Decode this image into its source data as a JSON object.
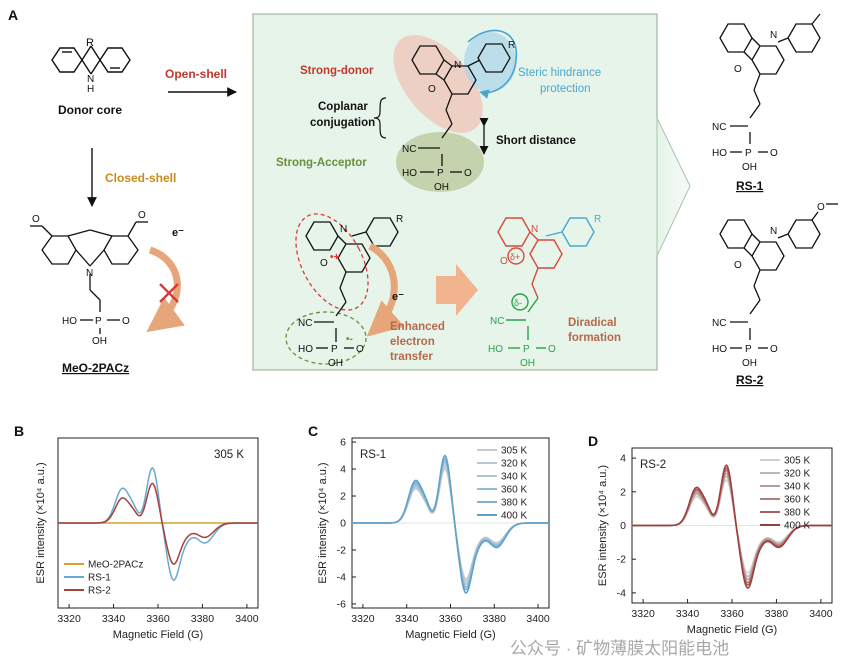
{
  "panel_a": {
    "letter": "A",
    "donor_core_label": "Donor core",
    "donor_r": "R",
    "donor_nh": "N",
    "donor_h": "H",
    "open_shell_label": "Open-shell",
    "closed_shell_label": "Closed-shell",
    "electron_label": "e⁻",
    "compound_ref_label": "MeO-2PACz",
    "center": {
      "strong_donor": "Strong-donor",
      "coplanar_line1": "Coplanar",
      "coplanar_line2": "conjugation",
      "strong_acceptor": "Strong-Acceptor",
      "steric_line1": "Steric hindrance",
      "steric_line2": "protection",
      "short_distance": "Short distance",
      "enhanced_line1": "Enhanced",
      "enhanced_line2": "electron",
      "enhanced_line3": "transfer",
      "diradical_line1": "Diradical",
      "diradical_line2": "formation",
      "electron_label": "e⁻",
      "delta_plus": "δ+",
      "delta_minus": "δ-",
      "radical_plus": "•+",
      "radical_minus": "•-"
    },
    "atoms": {
      "N": "N",
      "O": "O",
      "R": "R",
      "CN": "NC",
      "HO": "HO",
      "P": "P",
      "OH": "OH"
    },
    "rs1_label": "RS-1",
    "rs2_label": "RS-2"
  },
  "colors": {
    "panel_bg": "#e6f4ea",
    "donor_red": "#c0392b",
    "acceptor_green": "#6a8f3a",
    "steric_blue": "#4aa6d1",
    "closed_orange": "#c98a1e",
    "diradical_red": "#d84a3a",
    "diradical_green": "#2aa24a",
    "arrow_orange": "#e7a57a"
  },
  "chart_data": [
    {
      "id": "B",
      "type": "line",
      "letter": "B",
      "annotation": "305 K",
      "xlabel": "Magnetic Field (G)",
      "ylabel": "ESR intensity (×10⁴ a.u.)",
      "xlim": [
        3315,
        3405
      ],
      "ylim": [
        -4.6,
        4.6
      ],
      "xticks": [
        3320,
        3340,
        3360,
        3380,
        3400
      ],
      "yticks": [],
      "legend_position": "bottom-left",
      "series": [
        {
          "name": "MeO-2PACz",
          "color": "#d6a326",
          "scale": 0.0,
          "shape": "esr"
        },
        {
          "name": "RS-1",
          "color": "#6aa9cf",
          "scale": 1.0,
          "shape": "esr"
        },
        {
          "name": "RS-2",
          "color": "#a5413d",
          "scale": 0.72,
          "shape": "esr"
        }
      ]
    },
    {
      "id": "C",
      "type": "line",
      "letter": "C",
      "annotation": "RS-1",
      "xlabel": "Magnetic Field (G)",
      "ylabel": "ESR intensity (×10⁴ a.u.)",
      "xlim": [
        3315,
        3405
      ],
      "ylim": [
        -6.3,
        6.3
      ],
      "xticks": [
        3320,
        3340,
        3360,
        3380,
        3400
      ],
      "yticks": [
        -6,
        -4,
        -2,
        0,
        2,
        4,
        6
      ],
      "legend_position": "top-right",
      "series": [
        {
          "name": "305 K",
          "color": "#c9c9c9",
          "scale": 0.84,
          "shape": "esr"
        },
        {
          "name": "320 K",
          "color": "#b9c9d3",
          "scale": 0.88,
          "shape": "esr"
        },
        {
          "name": "340 K",
          "color": "#a9c6d8",
          "scale": 0.92,
          "shape": "esr"
        },
        {
          "name": "360 K",
          "color": "#93bbd6",
          "scale": 0.96,
          "shape": "esr"
        },
        {
          "name": "380 K",
          "color": "#7eb1d5",
          "scale": 1.0,
          "shape": "esr"
        },
        {
          "name": "400 K",
          "color": "#5f9fc9",
          "scale": 1.05,
          "shape": "esr"
        }
      ],
      "peak_value": 4.8
    },
    {
      "id": "D",
      "type": "line",
      "letter": "D",
      "annotation": "RS-2",
      "xlabel": "Magnetic Field (G)",
      "ylabel": "ESR intensity (×10⁴ a.u.)",
      "xlim": [
        3315,
        3405
      ],
      "ylim": [
        -4.6,
        4.6
      ],
      "xticks": [
        3320,
        3340,
        3360,
        3380,
        3400
      ],
      "yticks": [
        -4,
        -2,
        0,
        2,
        4
      ],
      "legend_position": "top-right",
      "series": [
        {
          "name": "305 K",
          "color": "#cfcfcf",
          "scale": 0.78,
          "shape": "esr"
        },
        {
          "name": "320 K",
          "color": "#c2b4b4",
          "scale": 0.84,
          "shape": "esr"
        },
        {
          "name": "340 K",
          "color": "#b89a9a",
          "scale": 0.89,
          "shape": "esr"
        },
        {
          "name": "360 K",
          "color": "#b07f7e",
          "scale": 0.94,
          "shape": "esr"
        },
        {
          "name": "380 K",
          "color": "#a8625f",
          "scale": 0.98,
          "shape": "esr"
        },
        {
          "name": "400 K",
          "color": "#9c3f3b",
          "scale": 1.03,
          "shape": "esr"
        }
      ],
      "peak_value": 3.5
    }
  ],
  "watermark": "公众号 · 矿物薄膜太阳能电池"
}
